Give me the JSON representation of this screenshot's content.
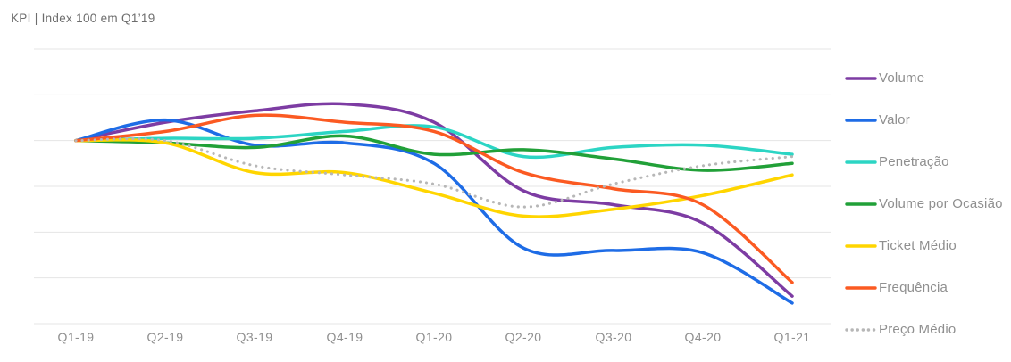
{
  "title": "KPI | Index 100 em Q1’19",
  "chart_data": {
    "type": "line",
    "title": "KPI | Index 100 em Q1’19",
    "x": [
      "Q1-19",
      "Q2-19",
      "Q3-19",
      "Q4-19",
      "Q1-20",
      "Q2-20",
      "Q3-20",
      "Q4-20",
      "Q1-21"
    ],
    "series": [
      {
        "name": "Volume",
        "color": "#7d3ca3",
        "line_style": "solid",
        "values": [
          100,
          104,
          106.5,
          108,
          104,
          89,
          86,
          82,
          66
        ]
      },
      {
        "name": "Valor",
        "color": "#1e6ce6",
        "line_style": "solid",
        "values": [
          100,
          104.5,
          99,
          99.5,
          95,
          76.5,
          76,
          75.5,
          64.5
        ]
      },
      {
        "name": "Penetração",
        "color": "#2cd5c4",
        "line_style": "solid",
        "values": [
          100,
          100.5,
          100.5,
          102,
          103,
          96.5,
          98.5,
          99,
          97
        ]
      },
      {
        "name": "Volume por Ocasião",
        "color": "#21a038",
        "line_style": "solid",
        "values": [
          100,
          99.5,
          98.5,
          101,
          97,
          98,
          96,
          93.5,
          95
        ]
      },
      {
        "name": "Ticket Médio",
        "color": "#ffd500",
        "line_style": "solid",
        "values": [
          100,
          99.5,
          93,
          93,
          88.5,
          83.5,
          85,
          88,
          92.5
        ]
      },
      {
        "name": "Frequência",
        "color": "#fb5a22",
        "line_style": "solid",
        "values": [
          100,
          102,
          105.5,
          104,
          102,
          93,
          89.5,
          86,
          69
        ]
      },
      {
        "name": "Preço Médio",
        "color": "#b7b7b7",
        "line_style": "dotted",
        "values": [
          100,
          100,
          94.5,
          92.5,
          90.5,
          85.5,
          90.5,
          94.5,
          96.5
        ]
      }
    ],
    "ylim": [
      60,
      120
    ],
    "y_gridlines": [
      60,
      70,
      80,
      90,
      100,
      110,
      120
    ],
    "baseline": 100,
    "grid": "horizontal-only",
    "y_axis_labels_visible": false,
    "legend_position": "right",
    "gridline_color": "#e4e4e4"
  }
}
